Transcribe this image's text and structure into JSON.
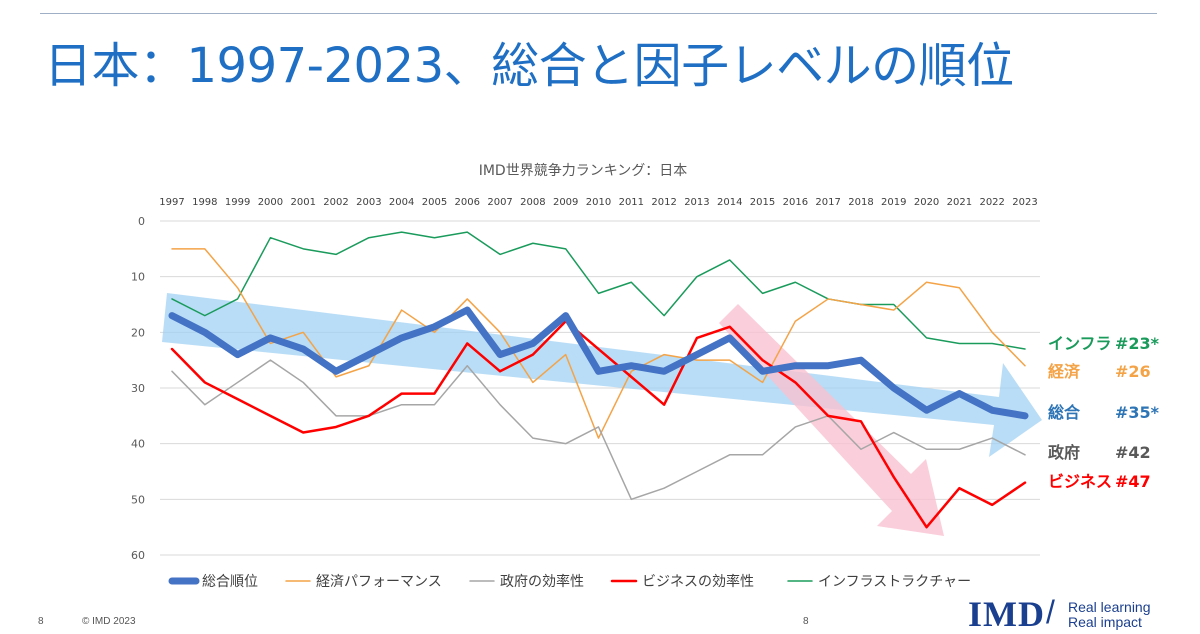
{
  "slide": {
    "title": "日本：1997-2023、総合と因子レベルの順位",
    "page_number_left": "8",
    "copyright": "© IMD 2023",
    "page_number_center": "8",
    "logo_text": "IMD",
    "logo_slash": "/",
    "tagline_1": "Real learning",
    "tagline_2": "Real impact"
  },
  "chart_data": {
    "type": "line",
    "title": "IMD世界競争力ランキング：日本",
    "x": [
      1997,
      1998,
      1999,
      2000,
      2001,
      2002,
      2003,
      2004,
      2005,
      2006,
      2007,
      2008,
      2009,
      2010,
      2011,
      2012,
      2013,
      2014,
      2015,
      2016,
      2017,
      2018,
      2019,
      2020,
      2021,
      2022,
      2023
    ],
    "ylim": [
      0,
      60
    ],
    "y_inverted": true,
    "yticks": [
      0,
      10,
      20,
      30,
      40,
      50,
      60
    ],
    "grid": true,
    "legend_position": "bottom",
    "series": [
      {
        "name": "総合順位",
        "color": "#4472c4",
        "width": "thick",
        "values": [
          17,
          20,
          24,
          21,
          23,
          27,
          24,
          21,
          19,
          16,
          24,
          22,
          17,
          27,
          26,
          27,
          24,
          21,
          27,
          26,
          26,
          25,
          30,
          34,
          31,
          34,
          35
        ]
      },
      {
        "name": "経済パフォーマンス",
        "color": "#f4a347",
        "width": "thin",
        "values": [
          5,
          5,
          12,
          22,
          20,
          28,
          26,
          16,
          20,
          14,
          20,
          29,
          24,
          39,
          27,
          24,
          25,
          25,
          29,
          18,
          14,
          15,
          16,
          11,
          12,
          20,
          26
        ]
      },
      {
        "name": "政府の効率性",
        "color": "#a6a6a6",
        "width": "thin",
        "values": [
          27,
          33,
          29,
          25,
          29,
          35,
          35,
          33,
          33,
          26,
          33,
          39,
          40,
          37,
          50,
          48,
          45,
          42,
          42,
          37,
          35,
          41,
          38,
          41,
          41,
          39,
          42
        ]
      },
      {
        "name": "ビジネスの効率性",
        "color": "#ff0000",
        "width": "medium",
        "values": [
          23,
          29,
          32,
          35,
          38,
          37,
          35,
          31,
          31,
          22,
          27,
          24,
          18,
          23,
          28,
          33,
          21,
          19,
          25,
          29,
          35,
          36,
          46,
          55,
          48,
          51,
          47
        ]
      },
      {
        "name": "インフラストラクチャー",
        "color": "#1a9b5c",
        "width": "thin",
        "values": [
          14,
          17,
          14,
          3,
          5,
          6,
          3,
          2,
          3,
          2,
          6,
          4,
          5,
          13,
          11,
          17,
          10,
          7,
          13,
          11,
          14,
          15,
          15,
          21,
          22,
          22,
          23
        ]
      }
    ],
    "annotations": [
      {
        "name": "インフラ",
        "rank": "#23*",
        "color": "#1a9b5c"
      },
      {
        "name": "経済",
        "rank": "#26",
        "color": "#f4a347"
      },
      {
        "name": "総合",
        "rank": "#35*",
        "color": "#2e75b6"
      },
      {
        "name": "政府",
        "rank": "#42",
        "color": "#595959"
      },
      {
        "name": "ビジネス",
        "rank": "#47",
        "color": "#ff0000"
      }
    ]
  }
}
